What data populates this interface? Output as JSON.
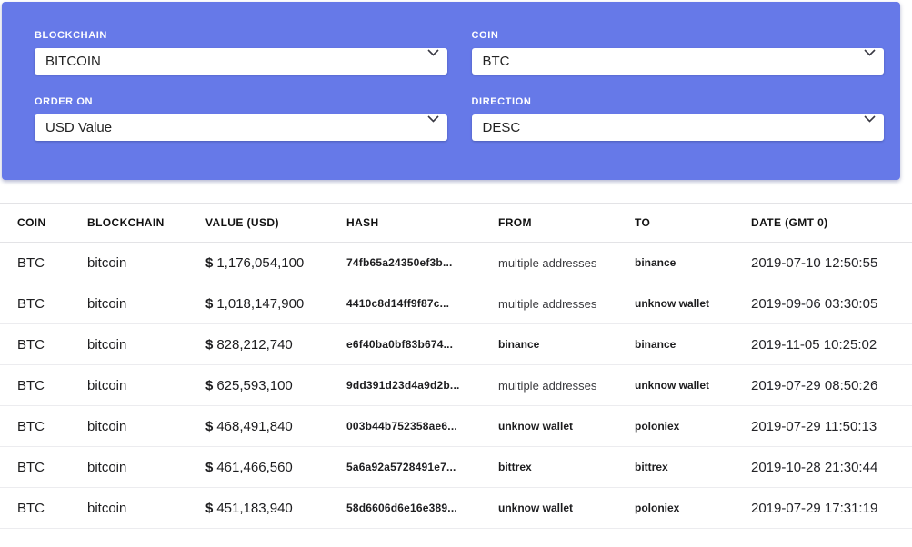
{
  "colors": {
    "panel_background": "#6679e8",
    "label_text": "#ffffff",
    "row_border": "#ececef"
  },
  "filters": {
    "blockchain": {
      "label": "BLOCKCHAIN",
      "value": "BITCOIN"
    },
    "coin": {
      "label": "COIN",
      "value": "BTC"
    },
    "order_on": {
      "label": "ORDER ON",
      "value": "USD Value"
    },
    "direction": {
      "label": "DIRECTION",
      "value": "DESC"
    }
  },
  "icons": {
    "dropdown": "chevron-down"
  },
  "table": {
    "columns": [
      "COIN",
      "BLOCKCHAIN",
      "VALUE (USD)",
      "HASH",
      "FROM",
      "TO",
      "DATE (GMT 0)"
    ],
    "rows": [
      {
        "coin": "BTC",
        "blockchain": "bitcoin",
        "currency": "$",
        "value": "1,176,054,100",
        "hash": "74fb65a24350ef3b...",
        "from": "multiple addresses",
        "to": "binance",
        "date": "2019-07-10 12:50:55"
      },
      {
        "coin": "BTC",
        "blockchain": "bitcoin",
        "currency": "$",
        "value": "1,018,147,900",
        "hash": "4410c8d14ff9f87c...",
        "from": "multiple addresses",
        "to": "unknow wallet",
        "date": "2019-09-06 03:30:05"
      },
      {
        "coin": "BTC",
        "blockchain": "bitcoin",
        "currency": "$",
        "value": "828,212,740",
        "hash": "e6f40ba0bf83b674...",
        "from": "binance",
        "to": "binance",
        "date": "2019-11-05 10:25:02"
      },
      {
        "coin": "BTC",
        "blockchain": "bitcoin",
        "currency": "$",
        "value": "625,593,100",
        "hash": "9dd391d23d4a9d2b...",
        "from": "multiple addresses",
        "to": "unknow wallet",
        "date": "2019-07-29 08:50:26"
      },
      {
        "coin": "BTC",
        "blockchain": "bitcoin",
        "currency": "$",
        "value": "468,491,840",
        "hash": "003b44b752358ae6...",
        "from": "unknow wallet",
        "to": "poloniex",
        "date": "2019-07-29 11:50:13"
      },
      {
        "coin": "BTC",
        "blockchain": "bitcoin",
        "currency": "$",
        "value": "461,466,560",
        "hash": "5a6a92a5728491e7...",
        "from": "bittrex",
        "to": "bittrex",
        "date": "2019-10-28 21:30:44"
      },
      {
        "coin": "BTC",
        "blockchain": "bitcoin",
        "currency": "$",
        "value": "451,183,940",
        "hash": "58d6606d6e16e389...",
        "from": "unknow wallet",
        "to": "poloniex",
        "date": "2019-07-29 17:31:19"
      }
    ],
    "multiple_addresses_text": "multiple addresses"
  }
}
